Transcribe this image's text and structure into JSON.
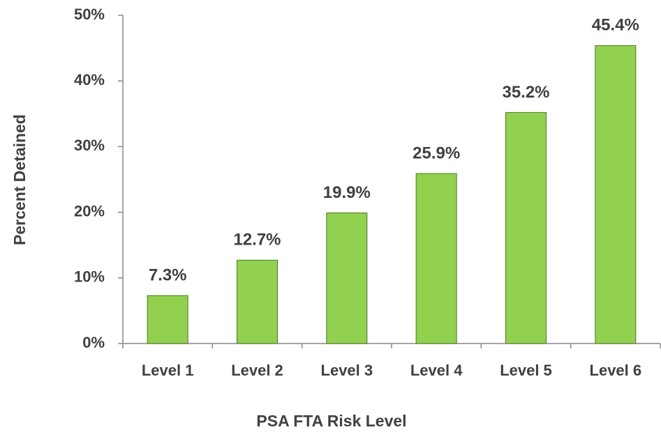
{
  "chart_data": {
    "type": "bar",
    "categories": [
      "Level 1",
      "Level 2",
      "Level 3",
      "Level 4",
      "Level 5",
      "Level 6"
    ],
    "values": [
      7.3,
      12.7,
      19.9,
      25.9,
      35.2,
      45.4
    ],
    "value_labels": [
      "7.3%",
      "12.7%",
      "19.9%",
      "25.9%",
      "35.2%",
      "45.4%"
    ],
    "color": "#92d050",
    "xlabel": "PSA FTA Risk Level",
    "ylabel": "Percent Detained",
    "ylim": [
      0,
      50
    ],
    "yticks": [
      {
        "value": 0,
        "label": "0%"
      },
      {
        "value": 10,
        "label": "10%"
      },
      {
        "value": 20,
        "label": "20%"
      },
      {
        "value": 30,
        "label": "30%"
      },
      {
        "value": 40,
        "label": "40%"
      },
      {
        "value": 50,
        "label": "50%"
      }
    ],
    "grid": false
  }
}
